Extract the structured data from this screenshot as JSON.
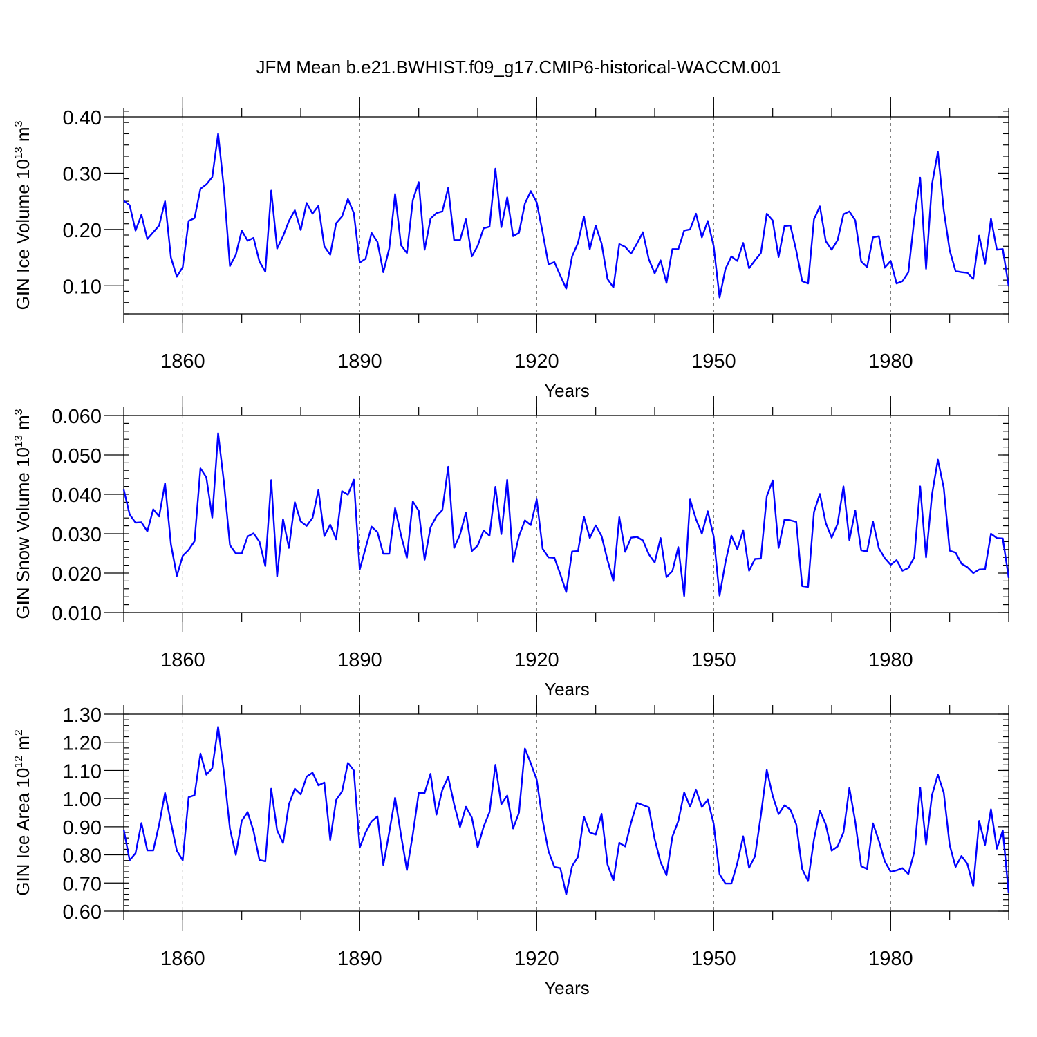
{
  "title": "JFM Mean b.e21.BWHIST.f09_g17.CMIP6-historical-WACCM.001",
  "chart_data": [
    {
      "type": "line",
      "series_name": "GIN Ice Volume",
      "ylabel_text": "GIN Ice Volume 10",
      "ylabel_exp": "13",
      "ylabel_unit": " m",
      "ylabel_unit_exp": "3",
      "xlabel": "Years",
      "xlim": [
        1850,
        2000
      ],
      "ylim": [
        0.05,
        0.4
      ],
      "yticks": [
        0.1,
        0.2,
        0.3,
        0.4
      ],
      "ytick_labels": [
        "0.10",
        "0.20",
        "0.30",
        "0.40"
      ],
      "yminor_step": 0.02,
      "xticks": [
        1860,
        1890,
        1920,
        1950,
        1980
      ],
      "xtick_labels": [
        "1860",
        "1890",
        "1920",
        "1950",
        "1980"
      ],
      "xminor_step": 10,
      "color": "#0000ff",
      "x_start": 1850,
      "values": [
        0.251,
        0.243,
        0.198,
        0.226,
        0.183,
        0.195,
        0.207,
        0.25,
        0.15,
        0.116,
        0.133,
        0.215,
        0.22,
        0.272,
        0.28,
        0.293,
        0.37,
        0.271,
        0.135,
        0.155,
        0.198,
        0.18,
        0.185,
        0.143,
        0.125,
        0.269,
        0.166,
        0.188,
        0.215,
        0.234,
        0.199,
        0.247,
        0.228,
        0.242,
        0.17,
        0.155,
        0.211,
        0.223,
        0.254,
        0.229,
        0.141,
        0.148,
        0.194,
        0.178,
        0.124,
        0.166,
        0.263,
        0.172,
        0.158,
        0.252,
        0.284,
        0.164,
        0.219,
        0.229,
        0.232,
        0.274,
        0.181,
        0.181,
        0.218,
        0.152,
        0.171,
        0.202,
        0.205,
        0.308,
        0.204,
        0.257,
        0.188,
        0.194,
        0.246,
        0.268,
        0.248,
        0.195,
        0.138,
        0.142,
        0.118,
        0.095,
        0.152,
        0.176,
        0.223,
        0.165,
        0.207,
        0.175,
        0.112,
        0.097,
        0.174,
        0.169,
        0.157,
        0.175,
        0.195,
        0.147,
        0.122,
        0.145,
        0.105,
        0.165,
        0.165,
        0.198,
        0.2,
        0.228,
        0.186,
        0.215,
        0.17,
        0.079,
        0.13,
        0.152,
        0.144,
        0.176,
        0.131,
        0.145,
        0.158,
        0.228,
        0.216,
        0.151,
        0.206,
        0.207,
        0.162,
        0.108,
        0.104,
        0.218,
        0.241,
        0.179,
        0.164,
        0.181,
        0.227,
        0.232,
        0.216,
        0.143,
        0.133,
        0.186,
        0.188,
        0.132,
        0.144,
        0.104,
        0.108,
        0.124,
        0.218,
        0.292,
        0.13,
        0.28,
        0.338,
        0.234,
        0.163,
        0.126,
        0.124,
        0.123,
        0.112,
        0.189,
        0.139,
        0.219,
        0.164,
        0.165,
        0.099
      ]
    },
    {
      "type": "line",
      "series_name": "GIN Snow Volume",
      "ylabel_text": "GIN Snow Volume 10",
      "ylabel_exp": "13",
      "ylabel_unit": " m",
      "ylabel_unit_exp": "3",
      "xlabel": "Years",
      "xlim": [
        1850,
        2000
      ],
      "ylim": [
        0.01,
        0.06
      ],
      "yticks": [
        0.01,
        0.02,
        0.03,
        0.04,
        0.05,
        0.06
      ],
      "ytick_labels": [
        "0.010",
        "0.020",
        "0.030",
        "0.040",
        "0.050",
        "0.060"
      ],
      "yminor_step": 0.002,
      "xticks": [
        1860,
        1890,
        1920,
        1950,
        1980
      ],
      "xtick_labels": [
        "1860",
        "1890",
        "1920",
        "1950",
        "1980"
      ],
      "xminor_step": 10,
      "color": "#0000ff",
      "x_start": 1850,
      "values": [
        0.0412,
        0.0349,
        0.0328,
        0.0329,
        0.0306,
        0.0362,
        0.0344,
        0.0428,
        0.0273,
        0.0193,
        0.0244,
        0.0259,
        0.0281,
        0.0466,
        0.0443,
        0.0341,
        0.0555,
        0.0428,
        0.0271,
        0.025,
        0.025,
        0.0293,
        0.0301,
        0.028,
        0.0218,
        0.0436,
        0.0192,
        0.0337,
        0.0264,
        0.038,
        0.0331,
        0.032,
        0.034,
        0.0411,
        0.0294,
        0.0323,
        0.0286,
        0.0408,
        0.0399,
        0.0437,
        0.0209,
        0.0264,
        0.0318,
        0.0304,
        0.0249,
        0.0249,
        0.0365,
        0.0296,
        0.0239,
        0.0382,
        0.0358,
        0.0234,
        0.0316,
        0.0344,
        0.036,
        0.047,
        0.0264,
        0.0298,
        0.0354,
        0.0256,
        0.027,
        0.0308,
        0.0295,
        0.0419,
        0.0299,
        0.0437,
        0.0229,
        0.0294,
        0.0334,
        0.0322,
        0.0387,
        0.0262,
        0.024,
        0.0239,
        0.0197,
        0.0152,
        0.0255,
        0.0256,
        0.0343,
        0.0289,
        0.0321,
        0.0294,
        0.0233,
        0.018,
        0.0342,
        0.0254,
        0.029,
        0.0292,
        0.0283,
        0.0248,
        0.0227,
        0.0289,
        0.019,
        0.0205,
        0.0266,
        0.0142,
        0.0387,
        0.0337,
        0.03,
        0.0357,
        0.0293,
        0.0143,
        0.0228,
        0.0295,
        0.0261,
        0.0309,
        0.0206,
        0.0236,
        0.0237,
        0.0395,
        0.0435,
        0.0264,
        0.0336,
        0.0334,
        0.033,
        0.0167,
        0.0165,
        0.0355,
        0.0401,
        0.0327,
        0.029,
        0.0325,
        0.042,
        0.0284,
        0.0359,
        0.0258,
        0.0255,
        0.0331,
        0.0263,
        0.0238,
        0.0221,
        0.0233,
        0.0206,
        0.0213,
        0.024,
        0.042,
        0.024,
        0.0399,
        0.0488,
        0.0416,
        0.0257,
        0.0252,
        0.0224,
        0.0215,
        0.02,
        0.0209,
        0.021,
        0.03,
        0.0289,
        0.0288,
        0.0188
      ]
    },
    {
      "type": "line",
      "series_name": "GIN Ice Area",
      "ylabel_text": "GIN Ice Area 10",
      "ylabel_exp": "12",
      "ylabel_unit": " m",
      "ylabel_unit_exp": "2",
      "xlabel": "Years",
      "xlim": [
        1850,
        2000
      ],
      "ylim": [
        0.6,
        1.3
      ],
      "yticks": [
        0.6,
        0.7,
        0.8,
        0.9,
        1.0,
        1.1,
        1.2,
        1.3
      ],
      "ytick_labels": [
        "0.60",
        "0.70",
        "0.80",
        "0.90",
        "1.00",
        "1.10",
        "1.20",
        "1.30"
      ],
      "yminor_step": 0.02,
      "xticks": [
        1860,
        1890,
        1920,
        1950,
        1980
      ],
      "xtick_labels": [
        "1860",
        "1890",
        "1920",
        "1950",
        "1980"
      ],
      "xminor_step": 10,
      "color": "#0000ff",
      "x_start": 1850,
      "values": [
        0.89,
        0.781,
        0.806,
        0.913,
        0.816,
        0.816,
        0.908,
        1.02,
        0.915,
        0.815,
        0.781,
        1.005,
        1.012,
        1.16,
        1.085,
        1.108,
        1.255,
        1.09,
        0.893,
        0.8,
        0.921,
        0.952,
        0.885,
        0.782,
        0.777,
        1.035,
        0.887,
        0.842,
        0.98,
        1.035,
        1.015,
        1.078,
        1.092,
        1.047,
        1.057,
        0.853,
        0.995,
        1.025,
        1.127,
        1.1,
        0.826,
        0.88,
        0.919,
        0.937,
        0.764,
        0.88,
        1.003,
        0.87,
        0.746,
        0.873,
        1.02,
        1.02,
        1.088,
        0.943,
        1.031,
        1.077,
        0.98,
        0.899,
        0.971,
        0.933,
        0.827,
        0.9,
        0.952,
        1.12,
        0.98,
        1.011,
        0.894,
        0.95,
        1.178,
        1.125,
        1.067,
        0.923,
        0.813,
        0.757,
        0.753,
        0.66,
        0.76,
        0.793,
        0.936,
        0.88,
        0.872,
        0.946,
        0.766,
        0.709,
        0.843,
        0.83,
        0.915,
        0.985,
        0.977,
        0.969,
        0.856,
        0.774,
        0.728,
        0.865,
        0.92,
        1.022,
        0.971,
        1.032,
        0.97,
        0.996,
        0.91,
        0.731,
        0.698,
        0.698,
        0.77,
        0.866,
        0.754,
        0.795,
        0.941,
        1.102,
        1.01,
        0.945,
        0.976,
        0.961,
        0.908,
        0.75,
        0.707,
        0.855,
        0.958,
        0.908,
        0.815,
        0.83,
        0.88,
        1.038,
        0.918,
        0.76,
        0.75,
        0.912,
        0.85,
        0.777,
        0.74,
        0.745,
        0.753,
        0.732,
        0.81,
        1.039,
        0.837,
        1.012,
        1.085,
        1.021,
        0.835,
        0.757,
        0.796,
        0.768,
        0.689,
        0.921,
        0.836,
        0.962,
        0.822,
        0.887,
        0.664
      ]
    }
  ]
}
